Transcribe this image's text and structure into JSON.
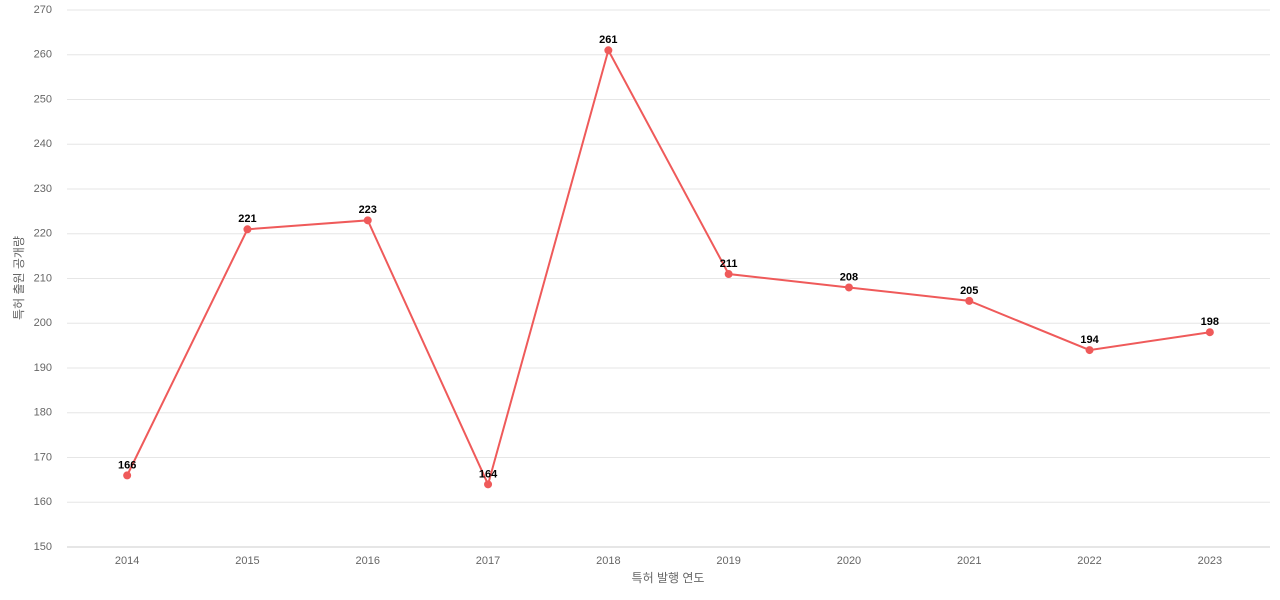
{
  "chart_data": {
    "type": "line",
    "x_label": "특허 발행 연도",
    "y_label": "특허 출원 공개량",
    "categories": [
      "2014",
      "2015",
      "2016",
      "2017",
      "2018",
      "2019",
      "2020",
      "2021",
      "2022",
      "2023"
    ],
    "series": [
      {
        "name": "특허 출원 공개량",
        "color": "#ef5a5a",
        "values": [
          166,
          221,
          223,
          164,
          261,
          211,
          208,
          205,
          194,
          198
        ]
      }
    ],
    "ylim": [
      150,
      270
    ],
    "yticks": [
      150,
      160,
      170,
      180,
      190,
      200,
      210,
      220,
      230,
      240,
      250,
      260,
      270
    ],
    "grid": true
  }
}
